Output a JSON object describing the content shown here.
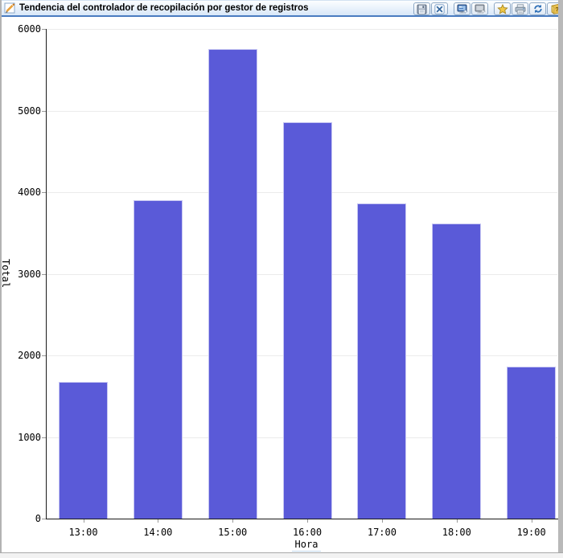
{
  "window": {
    "title": "Tendencia del controlador de recopilación por gestor de registros",
    "title_icon": "chart-edit-icon"
  },
  "toolbar": {
    "buttons": [
      {
        "name": "save",
        "icon": "save-icon",
        "group_start": false
      },
      {
        "name": "close",
        "icon": "close-icon",
        "group_start": false
      },
      {
        "name": "open-in-new-window",
        "icon": "monitor-sparkle-icon",
        "group_start": true
      },
      {
        "name": "open-in-new-window-alt",
        "icon": "monitor-sparkle-disabled-icon",
        "group_start": false
      },
      {
        "name": "favorite",
        "icon": "star-icon",
        "group_start": true
      },
      {
        "name": "print",
        "icon": "printer-icon",
        "group_start": false
      },
      {
        "name": "refresh",
        "icon": "refresh-icon",
        "group_start": false
      },
      {
        "name": "help",
        "icon": "help-icon",
        "group_start": false
      }
    ]
  },
  "chart_data": {
    "type": "bar",
    "title": "Tendencia del controlador de recopilación por gestor de registros",
    "categories": [
      "13:00",
      "14:00",
      "15:00",
      "16:00",
      "17:00",
      "18:00",
      "19:00"
    ],
    "values": [
      1670,
      3900,
      5750,
      4860,
      3860,
      3620,
      1860
    ],
    "xlabel": "Hora",
    "ylabel": "Total",
    "ylim": [
      0,
      6000
    ],
    "yticks": [
      0,
      1000,
      2000,
      3000,
      4000,
      5000,
      6000
    ],
    "grid": "horizontal-faint",
    "legend": "none"
  },
  "colors": {
    "bar": "#5a5ad8",
    "bar_border": "#c6c6f2",
    "titlebar_accent": "#4a7cc0",
    "grid": "#ebebeb",
    "axis": "#1a1a1a",
    "tick": "#9a9a9a"
  }
}
